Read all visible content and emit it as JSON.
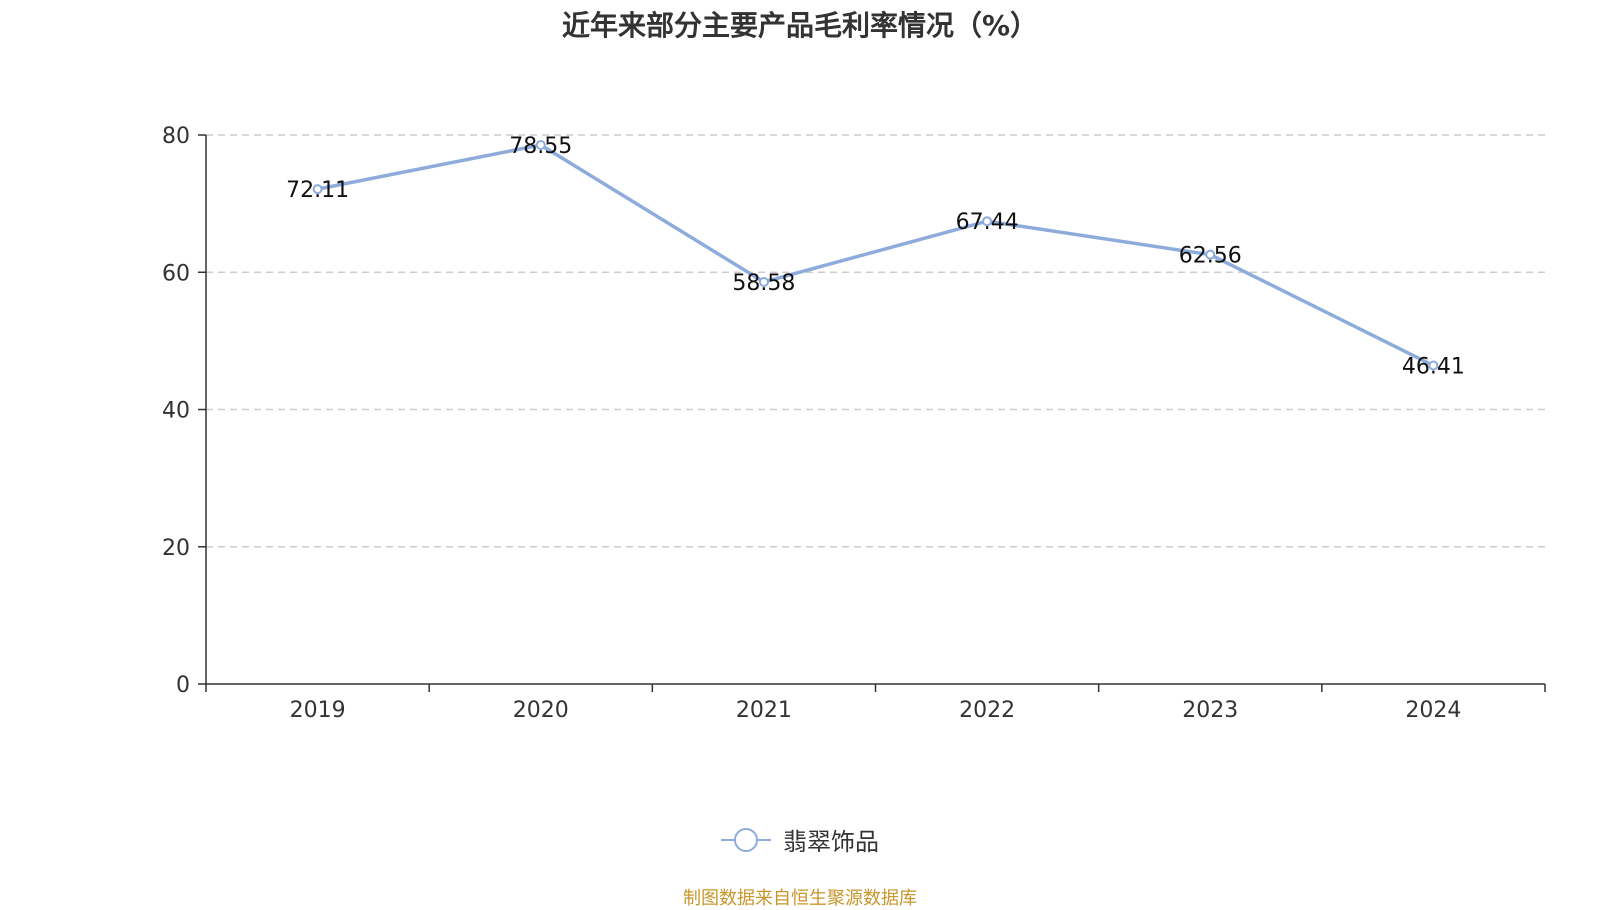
{
  "title": "近年来部分主要产品毛利率情况（%）",
  "source_note": "制图数据来自恒生聚源数据库",
  "colors": {
    "series": "#8eacdb",
    "axis": "#333333",
    "grid": "#cccccc",
    "source": "#c8962a"
  },
  "chart_data": {
    "type": "line",
    "categories": [
      "2019",
      "2020",
      "2021",
      "2022",
      "2023",
      "2024"
    ],
    "series": [
      {
        "name": "翡翠饰品",
        "values": [
          72.11,
          78.55,
          58.58,
          67.44,
          62.56,
          46.41
        ]
      }
    ],
    "value_labels": [
      "72.11",
      "78.55",
      "58.58",
      "67.44",
      "62.56",
      "46.41"
    ],
    "ylim": [
      0,
      80
    ],
    "yticks": [
      "0",
      "20",
      "40",
      "60",
      "80"
    ],
    "grid": true,
    "legend": "bottom-center",
    "xlabel": "",
    "ylabel": ""
  }
}
